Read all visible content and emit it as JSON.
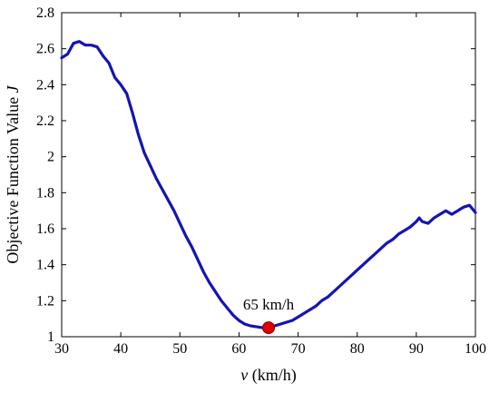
{
  "chart_data": {
    "type": "line",
    "xlabel": "(km/h)",
    "xlabel_var": "v",
    "ylabel": "Objective Function Value",
    "ylabel_var": "J",
    "xlim": [
      30,
      100
    ],
    "ylim": [
      1,
      2.8
    ],
    "xticks": [
      30,
      40,
      50,
      60,
      70,
      80,
      90,
      100
    ],
    "yticks": [
      1,
      1.2,
      1.4,
      1.6,
      1.8,
      2,
      2.2,
      2.4,
      2.6,
      2.8
    ],
    "grid": false,
    "series": [
      {
        "color": "#1414b4",
        "x": [
          30,
          31,
          32,
          33,
          34,
          35,
          36,
          37,
          38,
          39,
          40,
          41,
          42,
          43,
          44,
          45,
          46,
          47,
          48,
          49,
          50,
          51,
          52,
          53,
          54,
          55,
          56,
          57,
          58,
          59,
          60,
          61,
          62,
          63,
          64,
          65,
          66,
          67,
          68,
          69,
          70,
          71,
          72,
          73,
          74,
          75,
          76,
          77,
          78,
          79,
          80,
          81,
          82,
          83,
          84,
          85,
          86,
          87,
          88,
          89,
          90,
          90.5,
          91,
          92,
          93,
          94,
          95,
          96,
          97,
          98,
          99,
          100
        ],
        "y": [
          2.55,
          2.57,
          2.63,
          2.64,
          2.62,
          2.62,
          2.61,
          2.56,
          2.52,
          2.44,
          2.4,
          2.35,
          2.24,
          2.12,
          2.02,
          1.95,
          1.88,
          1.82,
          1.76,
          1.7,
          1.63,
          1.56,
          1.5,
          1.43,
          1.36,
          1.3,
          1.25,
          1.2,
          1.16,
          1.12,
          1.09,
          1.07,
          1.06,
          1.055,
          1.05,
          1.05,
          1.06,
          1.07,
          1.08,
          1.09,
          1.11,
          1.13,
          1.15,
          1.17,
          1.2,
          1.22,
          1.25,
          1.28,
          1.31,
          1.34,
          1.37,
          1.4,
          1.43,
          1.46,
          1.49,
          1.52,
          1.54,
          1.57,
          1.59,
          1.61,
          1.64,
          1.66,
          1.64,
          1.63,
          1.66,
          1.68,
          1.7,
          1.68,
          1.7,
          1.72,
          1.73,
          1.69
        ]
      }
    ],
    "marker": {
      "x": 65,
      "y": 1.05,
      "color": "#e00000"
    },
    "annotation": {
      "text": "65 km/h",
      "x": 65,
      "y": 1.05
    }
  }
}
